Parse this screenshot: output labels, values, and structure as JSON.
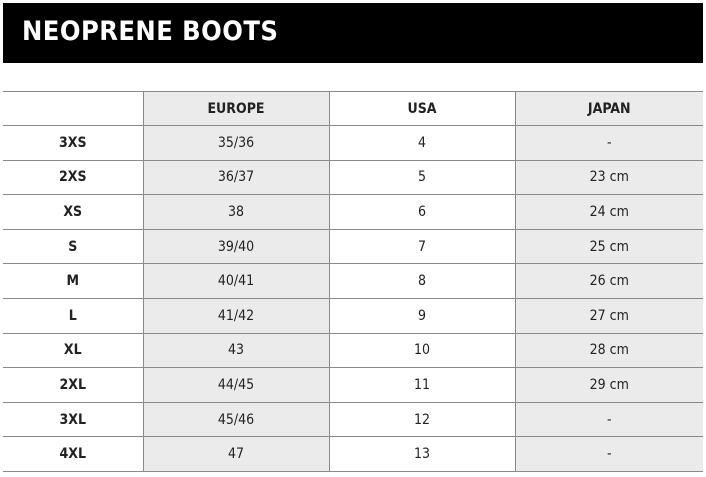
{
  "title": "NEOPRENE BOOTS",
  "columns": [
    "",
    "EUROPE",
    "USA",
    "JAPAN"
  ],
  "rows": [
    {
      "size": "3XS",
      "europe": "35/36",
      "usa": "4",
      "japan": "-"
    },
    {
      "size": "2XS",
      "europe": "36/37",
      "usa": "5",
      "japan": "23 cm"
    },
    {
      "size": "XS",
      "europe": "38",
      "usa": "6",
      "japan": "24 cm"
    },
    {
      "size": "S",
      "europe": "39/40",
      "usa": "7",
      "japan": "25 cm"
    },
    {
      "size": "M",
      "europe": "40/41",
      "usa": "8",
      "japan": "26 cm"
    },
    {
      "size": "L",
      "europe": "41/42",
      "usa": "9",
      "japan": "27 cm"
    },
    {
      "size": "XL",
      "europe": "43",
      "usa": "10",
      "japan": "28 cm"
    },
    {
      "size": "2XL",
      "europe": "44/45",
      "usa": "11",
      "japan": "29 cm"
    },
    {
      "size": "3XL",
      "europe": "45/46",
      "usa": "12",
      "japan": "-"
    },
    {
      "size": "4XL",
      "europe": "47",
      "usa": "13",
      "japan": "-"
    }
  ]
}
